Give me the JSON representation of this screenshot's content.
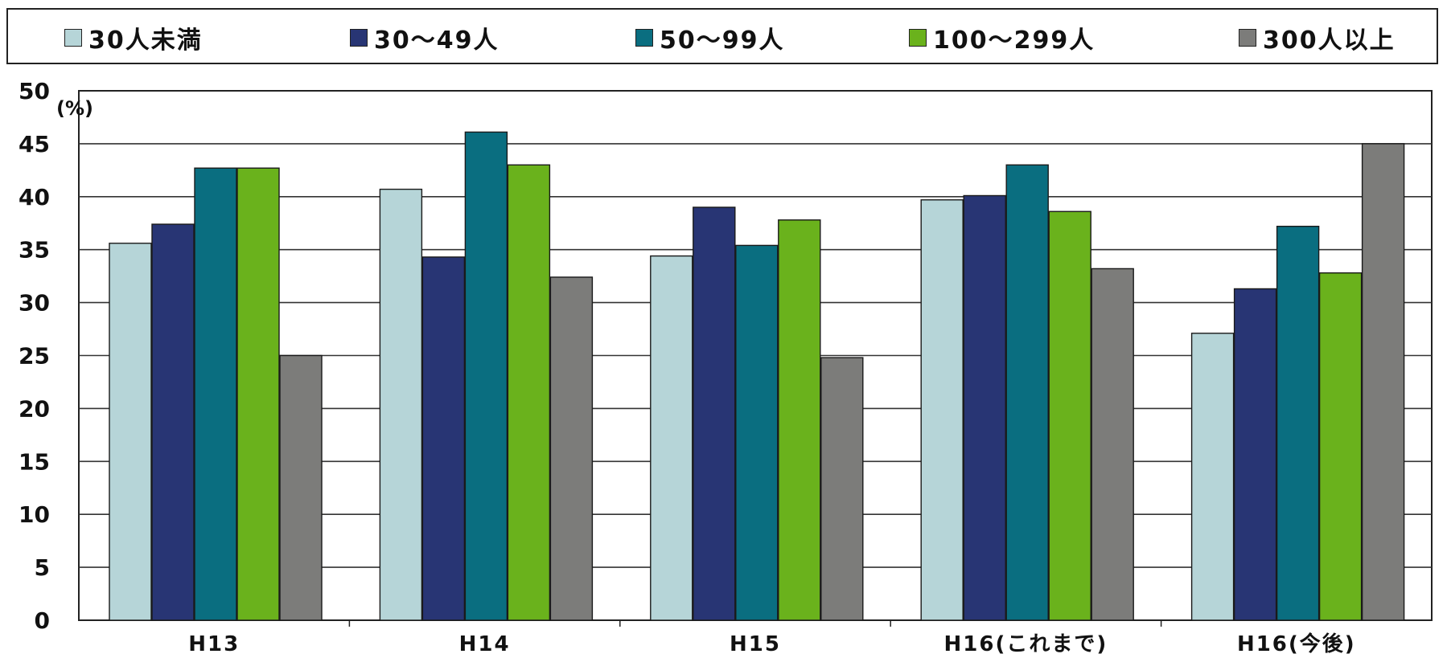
{
  "chart_data": {
    "type": "bar",
    "unit_label": "(%)",
    "categories": [
      "H13",
      "H14",
      "H15",
      "H16(これまで)",
      "H16(今後)"
    ],
    "series": [
      {
        "name": "30人未満",
        "color": "#b6d5d8",
        "values": [
          35.6,
          40.7,
          34.4,
          39.7,
          27.1
        ]
      },
      {
        "name": "30～49人",
        "color": "#283574",
        "values": [
          37.4,
          34.3,
          39.0,
          40.1,
          31.3
        ]
      },
      {
        "name": "50～99人",
        "color": "#0a6e80",
        "values": [
          42.7,
          46.1,
          35.4,
          43.0,
          37.2
        ]
      },
      {
        "name": "100～299人",
        "color": "#6ab21c",
        "values": [
          42.7,
          43.0,
          37.8,
          38.6,
          32.8
        ]
      },
      {
        "name": "300人以上",
        "color": "#7c7c7a",
        "values": [
          25.0,
          32.4,
          24.8,
          33.2,
          45.0
        ]
      }
    ],
    "ylim": [
      0,
      50
    ],
    "yticks": [
      "0",
      "5",
      "10",
      "15",
      "20",
      "25",
      "30",
      "35",
      "40",
      "45",
      "50"
    ],
    "grid": true,
    "legend_position": "top"
  }
}
